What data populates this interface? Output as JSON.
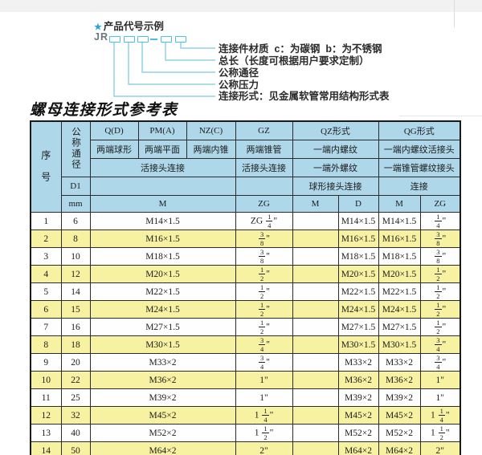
{
  "diagram": {
    "star": "★",
    "title": "产品代号示例",
    "prefix": "JR",
    "labels": [
      "连接件材质  c：为碳钢  b：为不锈钢",
      "总长（长度可根据用户要求定制）",
      "公称通径",
      "公称压力",
      "连接形式：见金属软管常用结构形式表"
    ]
  },
  "table_title": "螺母连接形式参考表",
  "table": {
    "header": {
      "seq": "序号",
      "dn": "公称通径",
      "d1": "D1",
      "mm": "mm",
      "col_q": "Q(D)",
      "col_pm": "PM(A)",
      "col_nz": "NZ(C)",
      "col_gz": "GZ",
      "qz": "QZ形式",
      "qg": "QG形式",
      "q_sub": "两端球形",
      "pm_sub": "两端平面",
      "nz_sub": "两端内锥",
      "gz_sub": "两端锥管",
      "qz_sub1": "一端内螺纹",
      "qg_sub1": "一端内螺纹活接头",
      "live_joint": "活接头连接",
      "gz_live": "活接头连接",
      "qz_sub2": "一端外螺纹",
      "qg_sub2": "一端锥管螺纹接头",
      "qz_sub3": "球形接头连接",
      "qg_sub3": "连接",
      "m": "M",
      "zg": "ZG",
      "qz_m": "M",
      "qz_d": "D",
      "qg_m": "M",
      "qg_zg": "ZG"
    },
    "rows": [
      {
        "seq": "1",
        "dn": "6",
        "m": "M14×1.5",
        "gz": "ZG 1/4\"",
        "qz_m": "",
        "qz_d": "M14×1.5",
        "qg_m": "M14×1.5",
        "qg_zg": "1/4\""
      },
      {
        "seq": "2",
        "dn": "8",
        "m": "M16×1.5",
        "gz": "3/8\"",
        "qz_m": "",
        "qz_d": "M16×1.5",
        "qg_m": "M16×1.5",
        "qg_zg": "3/8\""
      },
      {
        "seq": "3",
        "dn": "10",
        "m": "M18×1.5",
        "gz": "3/8\"",
        "qz_m": "",
        "qz_d": "M18×1.5",
        "qg_m": "M18×1.5",
        "qg_zg": "3/8\""
      },
      {
        "seq": "4",
        "dn": "12",
        "m": "M20×1.5",
        "gz": "1/2\"",
        "qz_m": "",
        "qz_d": "M20×1.5",
        "qg_m": "M20×1.5",
        "qg_zg": "1/2\""
      },
      {
        "seq": "5",
        "dn": "14",
        "m": "M22×1.5",
        "gz": "1/2\"",
        "qz_m": "",
        "qz_d": "M22×1.5",
        "qg_m": "M22×1.5",
        "qg_zg": "1/2\""
      },
      {
        "seq": "6",
        "dn": "15",
        "m": "M24×1.5",
        "gz": "1/2\"",
        "qz_m": "",
        "qz_d": "M24×1.5",
        "qg_m": "M24×1.5",
        "qg_zg": "1/2\""
      },
      {
        "seq": "7",
        "dn": "16",
        "m": "M27×1.5",
        "gz": "1/2\"",
        "qz_m": "",
        "qz_d": "M27×1.5",
        "qg_m": "M27×1.5",
        "qg_zg": "1/2\""
      },
      {
        "seq": "8",
        "dn": "18",
        "m": "M30×1.5",
        "gz": "3/4\"",
        "qz_m": "",
        "qz_d": "M30×1.5",
        "qg_m": "M30×1.5",
        "qg_zg": "3/4\""
      },
      {
        "seq": "9",
        "dn": "20",
        "m": "M33×2",
        "gz": "3/4\"",
        "qz_m": "",
        "qz_d": "M33×2",
        "qg_m": "M33×2",
        "qg_zg": "3/4\""
      },
      {
        "seq": "10",
        "dn": "22",
        "m": "M36×2",
        "gz": "1\"",
        "qz_m": "",
        "qz_d": "M36×2",
        "qg_m": "M36×2",
        "qg_zg": "1\""
      },
      {
        "seq": "11",
        "dn": "25",
        "m": "M39×2",
        "gz": "1\"",
        "qz_m": "",
        "qz_d": "M39×2",
        "qg_m": "M39×2",
        "qg_zg": "1\""
      },
      {
        "seq": "12",
        "dn": "32",
        "m": "M45×2",
        "gz": "1 1/4\"",
        "qz_m": "",
        "qz_d": "M45×2",
        "qg_m": "M45×2",
        "qg_zg": "1 1/4\""
      },
      {
        "seq": "13",
        "dn": "40",
        "m": "M52×2",
        "gz": "1 1/2\"",
        "qz_m": "",
        "qz_d": "M52×2",
        "qg_m": "M52×2",
        "qg_zg": "1 1/2\""
      },
      {
        "seq": "14",
        "dn": "50",
        "m": "M64×2",
        "gz": "2\"",
        "qz_m": "",
        "qz_d": "M64×2",
        "qg_m": "M64×2",
        "qg_zg": "2\""
      }
    ]
  },
  "colors": {
    "header_bg": "#aed7e9",
    "row_alt_bg": "#f7f2a2",
    "accent_cyan": "#44c3e6",
    "connector_blue": "#8fd2e4"
  }
}
